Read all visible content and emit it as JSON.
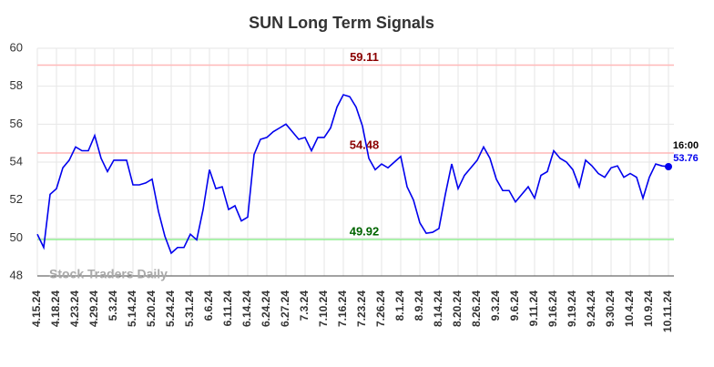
{
  "chart_data": {
    "type": "line",
    "title": "SUN Long Term Signals",
    "categories": [
      "4.15.24",
      null,
      null,
      "4.18.24",
      null,
      null,
      "4.23.24",
      null,
      null,
      "4.29.24",
      null,
      null,
      "5.3.24",
      null,
      null,
      "5.14.24",
      null,
      null,
      "5.20.24",
      null,
      null,
      "5.24.24",
      null,
      null,
      "5.31.24",
      null,
      null,
      "6.6.24",
      null,
      null,
      "6.11.24",
      null,
      null,
      "6.14.24",
      null,
      null,
      "6.24.24",
      null,
      null,
      "6.27.24",
      null,
      null,
      "7.3.24",
      null,
      null,
      "7.10.24",
      null,
      null,
      "7.16.24",
      null,
      null,
      "7.23.24",
      null,
      null,
      "7.26.24",
      null,
      null,
      "8.1.24",
      null,
      null,
      "8.9.24",
      null,
      null,
      "8.14.24",
      null,
      null,
      "8.20.24",
      null,
      null,
      "8.26.24",
      null,
      null,
      "9.3.24",
      null,
      null,
      "9.6.24",
      null,
      null,
      "9.11.24",
      null,
      null,
      "9.16.24",
      null,
      null,
      "9.19.24",
      null,
      null,
      "9.24.24",
      null,
      null,
      "9.30.24",
      null,
      null,
      "10.4.24",
      null,
      null,
      "10.9.24",
      null,
      null,
      "10.11.24"
    ],
    "values": [
      50.2,
      49.5,
      52.3,
      52.6,
      53.7,
      54.1,
      54.8,
      54.6,
      54.6,
      55.4,
      54.2,
      53.5,
      54.1,
      54.1,
      54.1,
      52.8,
      52.8,
      52.9,
      53.1,
      51.4,
      50.1,
      49.2,
      49.5,
      49.5,
      50.2,
      49.9,
      51.5,
      53.6,
      52.6,
      52.7,
      51.5,
      51.7,
      50.9,
      51.1,
      54.4,
      55.2,
      55.3,
      55.6,
      55.8,
      56.0,
      55.6,
      55.2,
      55.3,
      54.6,
      55.3,
      55.3,
      55.8,
      56.9,
      57.55,
      57.45,
      56.9,
      55.9,
      54.2,
      53.6,
      53.9,
      53.7,
      54.0,
      54.3,
      52.7,
      52.0,
      50.8,
      50.25,
      50.3,
      50.5,
      52.3,
      53.9,
      52.6,
      53.3,
      53.7,
      54.1,
      54.8,
      54.2,
      53.1,
      52.5,
      52.5,
      51.9,
      52.3,
      52.7,
      52.1,
      53.3,
      53.5,
      54.6,
      54.2,
      54.0,
      53.6,
      52.7,
      54.1,
      53.8,
      53.4,
      53.2,
      53.7,
      53.8,
      53.2,
      53.4,
      53.2,
      52.1,
      53.2,
      53.9,
      53.8,
      53.76
    ],
    "color": "#0000ee",
    "last_label": "16:00",
    "watermark": "Stock Traders Daily",
    "reference_lines": [
      {
        "value": 59.11,
        "color": "#ffb8b8",
        "label_color": "#8b0000"
      },
      {
        "value": 54.48,
        "color": "#ffb8b8",
        "label_color": "#8b0000"
      },
      {
        "value": 49.92,
        "color": "#90ee90",
        "label_color": "#006400"
      }
    ],
    "ylim": [
      48,
      60
    ],
    "yticks": [
      48,
      50,
      52,
      54,
      56,
      58,
      60
    ],
    "grid": true
  }
}
